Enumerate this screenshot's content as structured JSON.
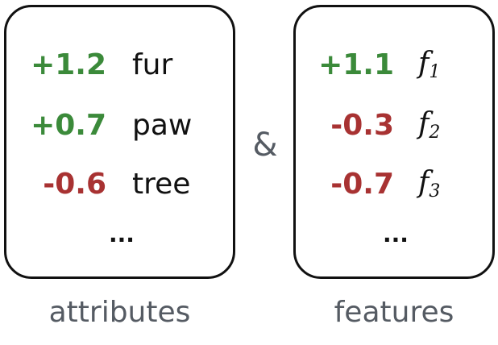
{
  "attributes": {
    "rows": [
      {
        "weight": "+1.2",
        "sign": "pos",
        "term": "fur"
      },
      {
        "weight": "+0.7",
        "sign": "pos",
        "term": "paw"
      },
      {
        "weight": "-0.6",
        "sign": "neg",
        "term": "tree"
      }
    ],
    "ellipsis": "...",
    "caption": "attributes"
  },
  "connector": "&",
  "features": {
    "rows": [
      {
        "weight": "+1.1",
        "sign": "pos",
        "term": "f",
        "subscript": "1"
      },
      {
        "weight": "-0.3",
        "sign": "neg",
        "term": "f",
        "subscript": "2"
      },
      {
        "weight": "-0.7",
        "sign": "neg",
        "term": "f",
        "subscript": "3"
      }
    ],
    "ellipsis": "...",
    "caption": "features"
  },
  "colors": {
    "positive": "#3b8a3a",
    "negative": "#a83232",
    "caption": "#555b63",
    "border": "#111111"
  }
}
